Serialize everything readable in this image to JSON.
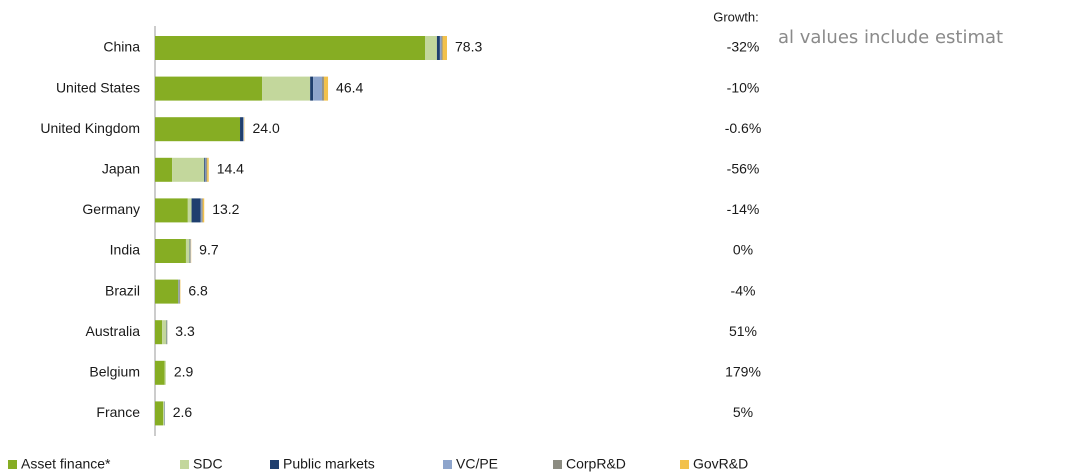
{
  "chart_data": {
    "type": "stacked-hbar",
    "annotation": "al values include estimat",
    "categories": [
      "China",
      "United States",
      "United Kingdom",
      "Japan",
      "Germany",
      "India",
      "Brazil",
      "Australia",
      "Belgium",
      "France"
    ],
    "series": [
      {
        "name": "Asset finance*",
        "color": "#86ad23",
        "values": [
          72.4,
          28.7,
          22.8,
          4.6,
          8.8,
          8.3,
          6.2,
          1.9,
          2.6,
          2.2
        ]
      },
      {
        "name": "SDC",
        "color": "#c3d79c",
        "values": [
          3.2,
          12.9,
          0,
          8.6,
          1.0,
          1.0,
          0.1,
          1.2,
          0.3,
          0.3
        ]
      },
      {
        "name": "Public markets",
        "color": "#1f3f6e",
        "values": [
          0.8,
          0.8,
          0.8,
          0.3,
          2.4,
          0.1,
          0.1,
          0.1,
          0,
          0.1
        ]
      },
      {
        "name": "VC/PE",
        "color": "#8ea5cc",
        "values": [
          0.4,
          2.4,
          0.2,
          0.2,
          0.3,
          0.1,
          0.1,
          0,
          0,
          0
        ]
      },
      {
        "name": "CorpR&D",
        "color": "#8c8c82",
        "values": [
          0.3,
          0.5,
          0.1,
          0.3,
          0.3,
          0.1,
          0.2,
          0.1,
          0,
          0
        ]
      },
      {
        "name": "GovR&D",
        "color": "#f2c14c",
        "values": [
          1.2,
          1.1,
          0.1,
          0.4,
          0.4,
          0.1,
          0.1,
          0,
          0,
          0
        ]
      }
    ],
    "total_labels": [
      "78.3",
      "46.4",
      "24.0",
      "14.4",
      "13.2",
      "9.7",
      "6.8",
      "3.3",
      "2.9",
      "2.6"
    ],
    "growth": {
      "label": "Growth:",
      "values": [
        "-32%",
        "-10%",
        "-0.6%",
        "-56%",
        "-14%",
        "0%",
        "-4%",
        "51%",
        "179%",
        "5%"
      ]
    }
  }
}
